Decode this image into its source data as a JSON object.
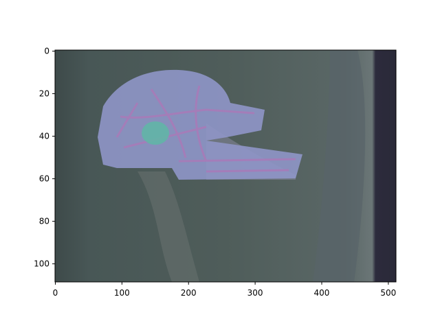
{
  "chart_data": {
    "type": "image",
    "xlim": [
      -0.5,
      511.5
    ],
    "xticks": [
      0,
      100,
      200,
      300,
      400,
      500
    ],
    "ylim": [
      108.5,
      -0.5
    ],
    "yticks": [
      0,
      20,
      40,
      60,
      80,
      100
    ]
  }
}
